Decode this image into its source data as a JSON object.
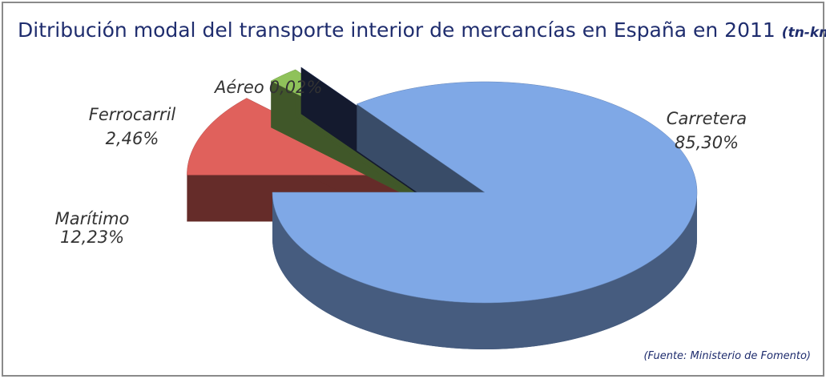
{
  "chart_data": {
    "type": "pie3d",
    "title": "Ditribución modal del transporte interior de mercancías en España en 2011",
    "subtitle": "(tn-km)",
    "source": "(Fuente: Ministerio de Fomento)",
    "categories": [
      "Marítimo",
      "Ferrocarril",
      "Aéreo",
      "Carretera"
    ],
    "values": [
      12.23,
      2.46,
      0.02,
      85.3
    ],
    "value_labels": [
      "12,23%",
      "2,46%",
      "0,02%",
      "85,30%"
    ],
    "colors": [
      "#e0615c",
      "#8fc25a",
      "#2c3a66",
      "#7fa8e6"
    ]
  }
}
